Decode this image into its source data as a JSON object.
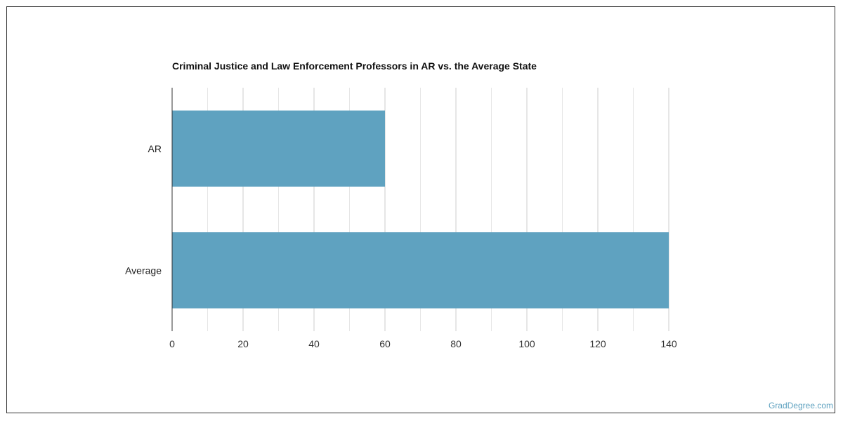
{
  "footer": {
    "credit": "GradDegree.com"
  },
  "colors": {
    "bar": "#5fa2c0",
    "grid_major": "#cccccc",
    "grid_minor": "#e6e6e6",
    "axis": "#333333"
  },
  "chart_data": {
    "type": "bar",
    "orientation": "horizontal",
    "title": "Criminal Justice and Law Enforcement Professors in AR vs. the Average State",
    "categories": [
      "AR",
      "Average"
    ],
    "values": [
      60,
      140
    ],
    "xlim": [
      0,
      140
    ],
    "xticks": [
      0,
      20,
      40,
      60,
      80,
      100,
      120,
      140
    ],
    "xlabel": "",
    "ylabel": "",
    "grid": true,
    "legend": "none"
  }
}
